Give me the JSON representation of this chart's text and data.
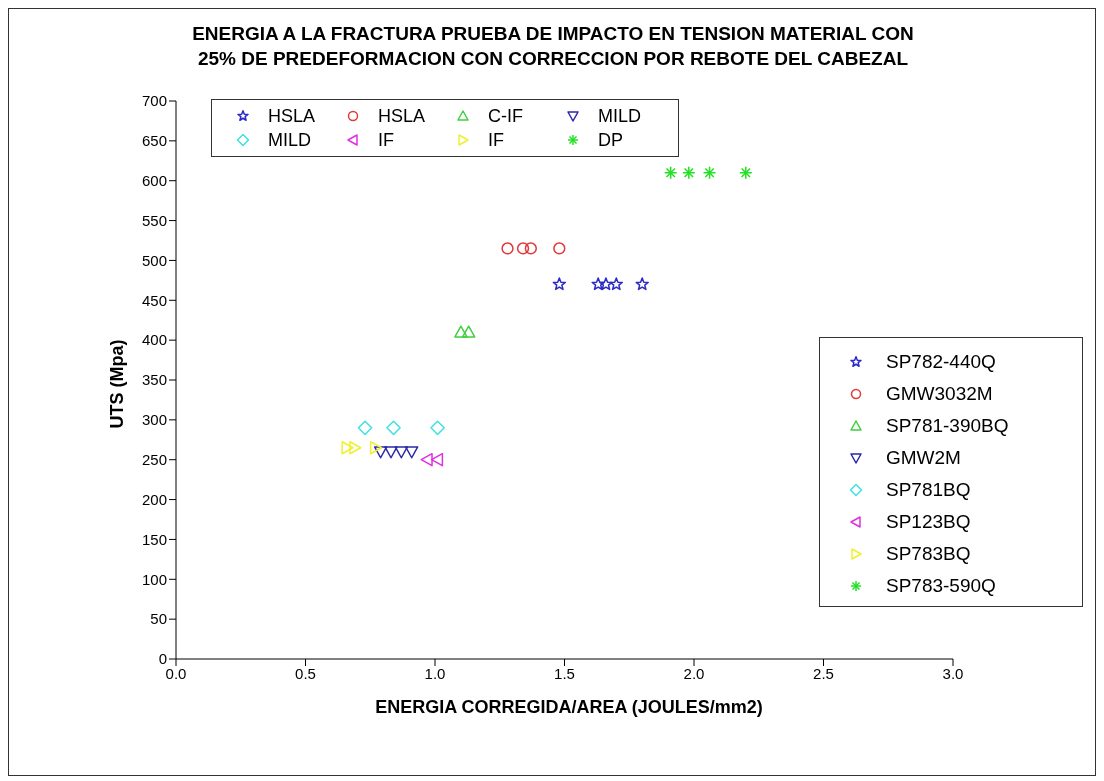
{
  "chart_data": {
    "type": "scatter",
    "title": "ENERGIA A LA FRACTURA PRUEBA DE IMPACTO EN TENSION MATERIAL CON 25% DE PREDEFORMACION CON CORRECCION POR REBOTE DEL CABEZAL",
    "xlabel": "ENERGIA CORREGIDA/AREA (JOULES/mm2)",
    "ylabel": "UTS (Mpa)",
    "xlim": [
      0,
      3
    ],
    "ylim": [
      0,
      700
    ],
    "xticks": [
      {
        "value": 0,
        "label": "0.0"
      },
      {
        "value": 0.5,
        "label": "0.5"
      },
      {
        "value": 1,
        "label": "1.0"
      },
      {
        "value": 1.5,
        "label": "1.5"
      },
      {
        "value": 2,
        "label": "2.0"
      },
      {
        "value": 2.5,
        "label": "2.5"
      },
      {
        "value": 3,
        "label": "3.0"
      }
    ],
    "yticks": [
      0,
      50,
      100,
      150,
      200,
      250,
      300,
      350,
      400,
      450,
      500,
      550,
      600,
      650,
      700
    ],
    "grid": false,
    "legend": "right",
    "annotations": [
      "HSLA",
      "HSLA",
      "C-IF",
      "MILD",
      "MILD",
      "IF",
      "IF",
      "DP"
    ],
    "series": [
      {
        "name": "SP782-440Q",
        "color": "#2a2ac8",
        "marker": "star",
        "x": [
          1.48,
          1.63,
          1.66,
          1.7,
          1.8
        ],
        "values": [
          470,
          470,
          470,
          470,
          470
        ]
      },
      {
        "name": "GMW3032M",
        "color": "#e03a3a",
        "marker": "circle",
        "x": [
          1.28,
          1.34,
          1.37,
          1.48
        ],
        "values": [
          515,
          515,
          515,
          515
        ]
      },
      {
        "name": "SP781-390BQ",
        "color": "#40d040",
        "marker": "triangle",
        "x": [
          1.1,
          1.13
        ],
        "values": [
          410,
          410
        ]
      },
      {
        "name": "GMW2M",
        "color": "#2a2aa8",
        "marker": "triangle-down",
        "x": [
          0.79,
          0.83,
          0.87,
          0.91
        ],
        "values": [
          260,
          260,
          260,
          260
        ]
      },
      {
        "name": "SP781BQ",
        "color": "#40e0e0",
        "marker": "diamond",
        "x": [
          0.73,
          0.84,
          1.01
        ],
        "values": [
          290,
          290,
          290
        ]
      },
      {
        "name": "SP123BQ",
        "color": "#e030e0",
        "marker": "triangle-left",
        "x": [
          0.97,
          1.01
        ],
        "values": [
          250,
          250
        ]
      },
      {
        "name": "SP783BQ",
        "color": "#f0f030",
        "marker": "triangle-right",
        "x": [
          0.66,
          0.69,
          0.77
        ],
        "values": [
          265,
          265,
          265
        ]
      },
      {
        "name": "SP783-590Q",
        "color": "#22e022",
        "marker": "cross",
        "x": [
          1.91,
          1.98,
          2.06,
          2.2
        ],
        "values": [
          610,
          610,
          610,
          610
        ]
      }
    ]
  }
}
